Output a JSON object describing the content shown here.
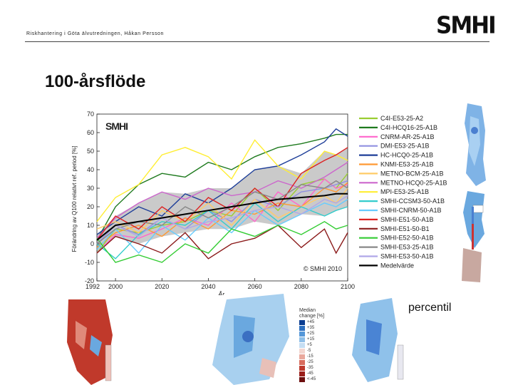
{
  "header": {
    "org_line": "Riskhantering i Göta älvutredningen, Håkan Persson",
    "logo": "SMHI"
  },
  "slide": {
    "title": "100-årsflöde",
    "side_label": "percentil"
  },
  "maps": [
    {
      "legend_title": "Median change [%]",
      "legend_values": [
        "+45",
        "+35",
        "+25",
        "+15",
        "+5",
        "-5",
        "-15",
        "-25",
        "-35",
        "-45",
        "<-45"
      ]
    }
  ],
  "colors": {
    "mean": "#000000",
    "spread": "#bdbdbd"
  },
  "chart_data": {
    "type": "line",
    "ylabel": "Förändring av Q100 relativt ref. period [%]",
    "xlabel": "År",
    "watermark_logo": "SMHI",
    "copyright": "© SMHI 2010",
    "xlim": [
      1992,
      2100
    ],
    "ylim": [
      -20,
      70
    ],
    "xticks": [
      1992,
      2000,
      2020,
      2040,
      2060,
      2080,
      2100
    ],
    "yticks": [
      -20,
      -10,
      0,
      10,
      20,
      30,
      40,
      50,
      60,
      70
    ],
    "x": [
      1992,
      2000,
      2010,
      2020,
      2030,
      2040,
      2050,
      2060,
      2070,
      2080,
      2090,
      2095,
      2100
    ],
    "series": [
      {
        "name": "C4I-E53-25-A2",
        "color": "#9acd32",
        "values": [
          -5,
          8,
          6,
          10,
          12,
          18,
          15,
          30,
          18,
          32,
          35,
          30,
          38
        ]
      },
      {
        "name": "C4I-HCQ16-25-A1B",
        "color": "#1e7a1e",
        "values": [
          2,
          20,
          32,
          38,
          36,
          44,
          40,
          47,
          52,
          54,
          57,
          59,
          59
        ]
      },
      {
        "name": "CNRM-AR-25-A1B",
        "color": "#ff66cc",
        "values": [
          -5,
          5,
          3,
          8,
          14,
          10,
          22,
          12,
          28,
          20,
          35,
          30,
          32
        ]
      },
      {
        "name": "DMI-E53-25-A1B",
        "color": "#9090e0",
        "values": [
          0,
          10,
          5,
          14,
          8,
          18,
          12,
          24,
          20,
          28,
          30,
          32,
          34
        ]
      },
      {
        "name": "HC-HCQ0-25-A1B",
        "color": "#1f3f99",
        "values": [
          5,
          12,
          20,
          15,
          27,
          22,
          30,
          40,
          42,
          48,
          55,
          62,
          58
        ]
      },
      {
        "name": "KNMI-E53-25-A1B",
        "color": "#ff9933",
        "values": [
          -2,
          6,
          10,
          4,
          14,
          8,
          18,
          16,
          22,
          20,
          30,
          28,
          33
        ]
      },
      {
        "name": "METNO-BCM-25-A1B",
        "color": "#ffcc66",
        "values": [
          8,
          12,
          6,
          18,
          12,
          22,
          10,
          24,
          14,
          20,
          26,
          22,
          30
        ]
      },
      {
        "name": "METNO-HCQ0-25-A1B",
        "color": "#cc66cc",
        "values": [
          3,
          14,
          22,
          28,
          24,
          30,
          26,
          28,
          34,
          30,
          36,
          40,
          44
        ]
      },
      {
        "name": "MPI-E53-25-A1B",
        "color": "#ffee33",
        "values": [
          12,
          25,
          32,
          48,
          52,
          47,
          35,
          56,
          42,
          35,
          50,
          48,
          45
        ]
      },
      {
        "name": "SMHI-CCSM3-50-A1B",
        "color": "#33cccc",
        "values": [
          0,
          -8,
          5,
          12,
          10,
          18,
          8,
          22,
          12,
          20,
          15,
          18,
          20
        ]
      },
      {
        "name": "SMHI-CNRM-50-A1B",
        "color": "#66ccff",
        "values": [
          -3,
          8,
          -5,
          10,
          2,
          14,
          6,
          18,
          10,
          16,
          22,
          20,
          24
        ]
      },
      {
        "name": "SMHI-E51-50-A1B",
        "color": "#dd2222",
        "values": [
          2,
          15,
          8,
          20,
          12,
          25,
          18,
          30,
          20,
          38,
          45,
          48,
          52
        ]
      },
      {
        "name": "SMHI-E51-50-B1",
        "color": "#8b1a1a",
        "values": [
          -5,
          4,
          0,
          -5,
          6,
          -8,
          0,
          3,
          10,
          -2,
          8,
          -5,
          6
        ]
      },
      {
        "name": "SMHI-E52-50-A1B",
        "color": "#33cc33",
        "values": [
          3,
          -10,
          -6,
          -10,
          0,
          -5,
          8,
          4,
          10,
          5,
          12,
          8,
          10
        ]
      },
      {
        "name": "SMHI-E53-25-A1B",
        "color": "#888888",
        "values": [
          0,
          8,
          12,
          10,
          20,
          14,
          20,
          28,
          24,
          32,
          30,
          34,
          30
        ]
      },
      {
        "name": "SMHI-E53-50-A1B",
        "color": "#b0a8e8",
        "values": [
          2,
          10,
          4,
          14,
          8,
          12,
          14,
          18,
          20,
          16,
          24,
          22,
          26
        ]
      },
      {
        "name": "Medelvärde",
        "color": "#000000",
        "values": [
          2,
          10,
          12,
          14,
          16,
          18,
          20,
          22,
          24,
          25,
          26,
          27,
          27
        ]
      }
    ]
  }
}
